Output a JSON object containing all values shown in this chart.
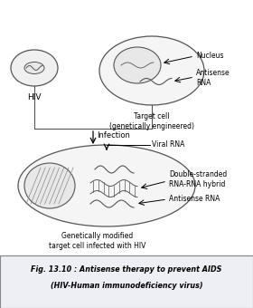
{
  "title_line1": "Fig. 13.10 : Antisense therapy to prevent AIDS",
  "title_line2": "(HIV-Human immunodeficiency virus)",
  "bg_color": "#ffffff",
  "caption_bg": "#eeeef5",
  "label_hiv": "HIV",
  "label_target": "Target cell\n(genetically engineered)",
  "label_nucleus": "Nucleus",
  "label_antisense_rna": "Antisense\nRNA",
  "label_infection": "Infection",
  "label_viral_rna": "Viral RNA",
  "label_double": "Double-stranded\nRNA-RNA hybrid",
  "label_antisense2": "Antisense RNA",
  "label_bottom": "Genetically modified\ntarget cell infected with HIV"
}
